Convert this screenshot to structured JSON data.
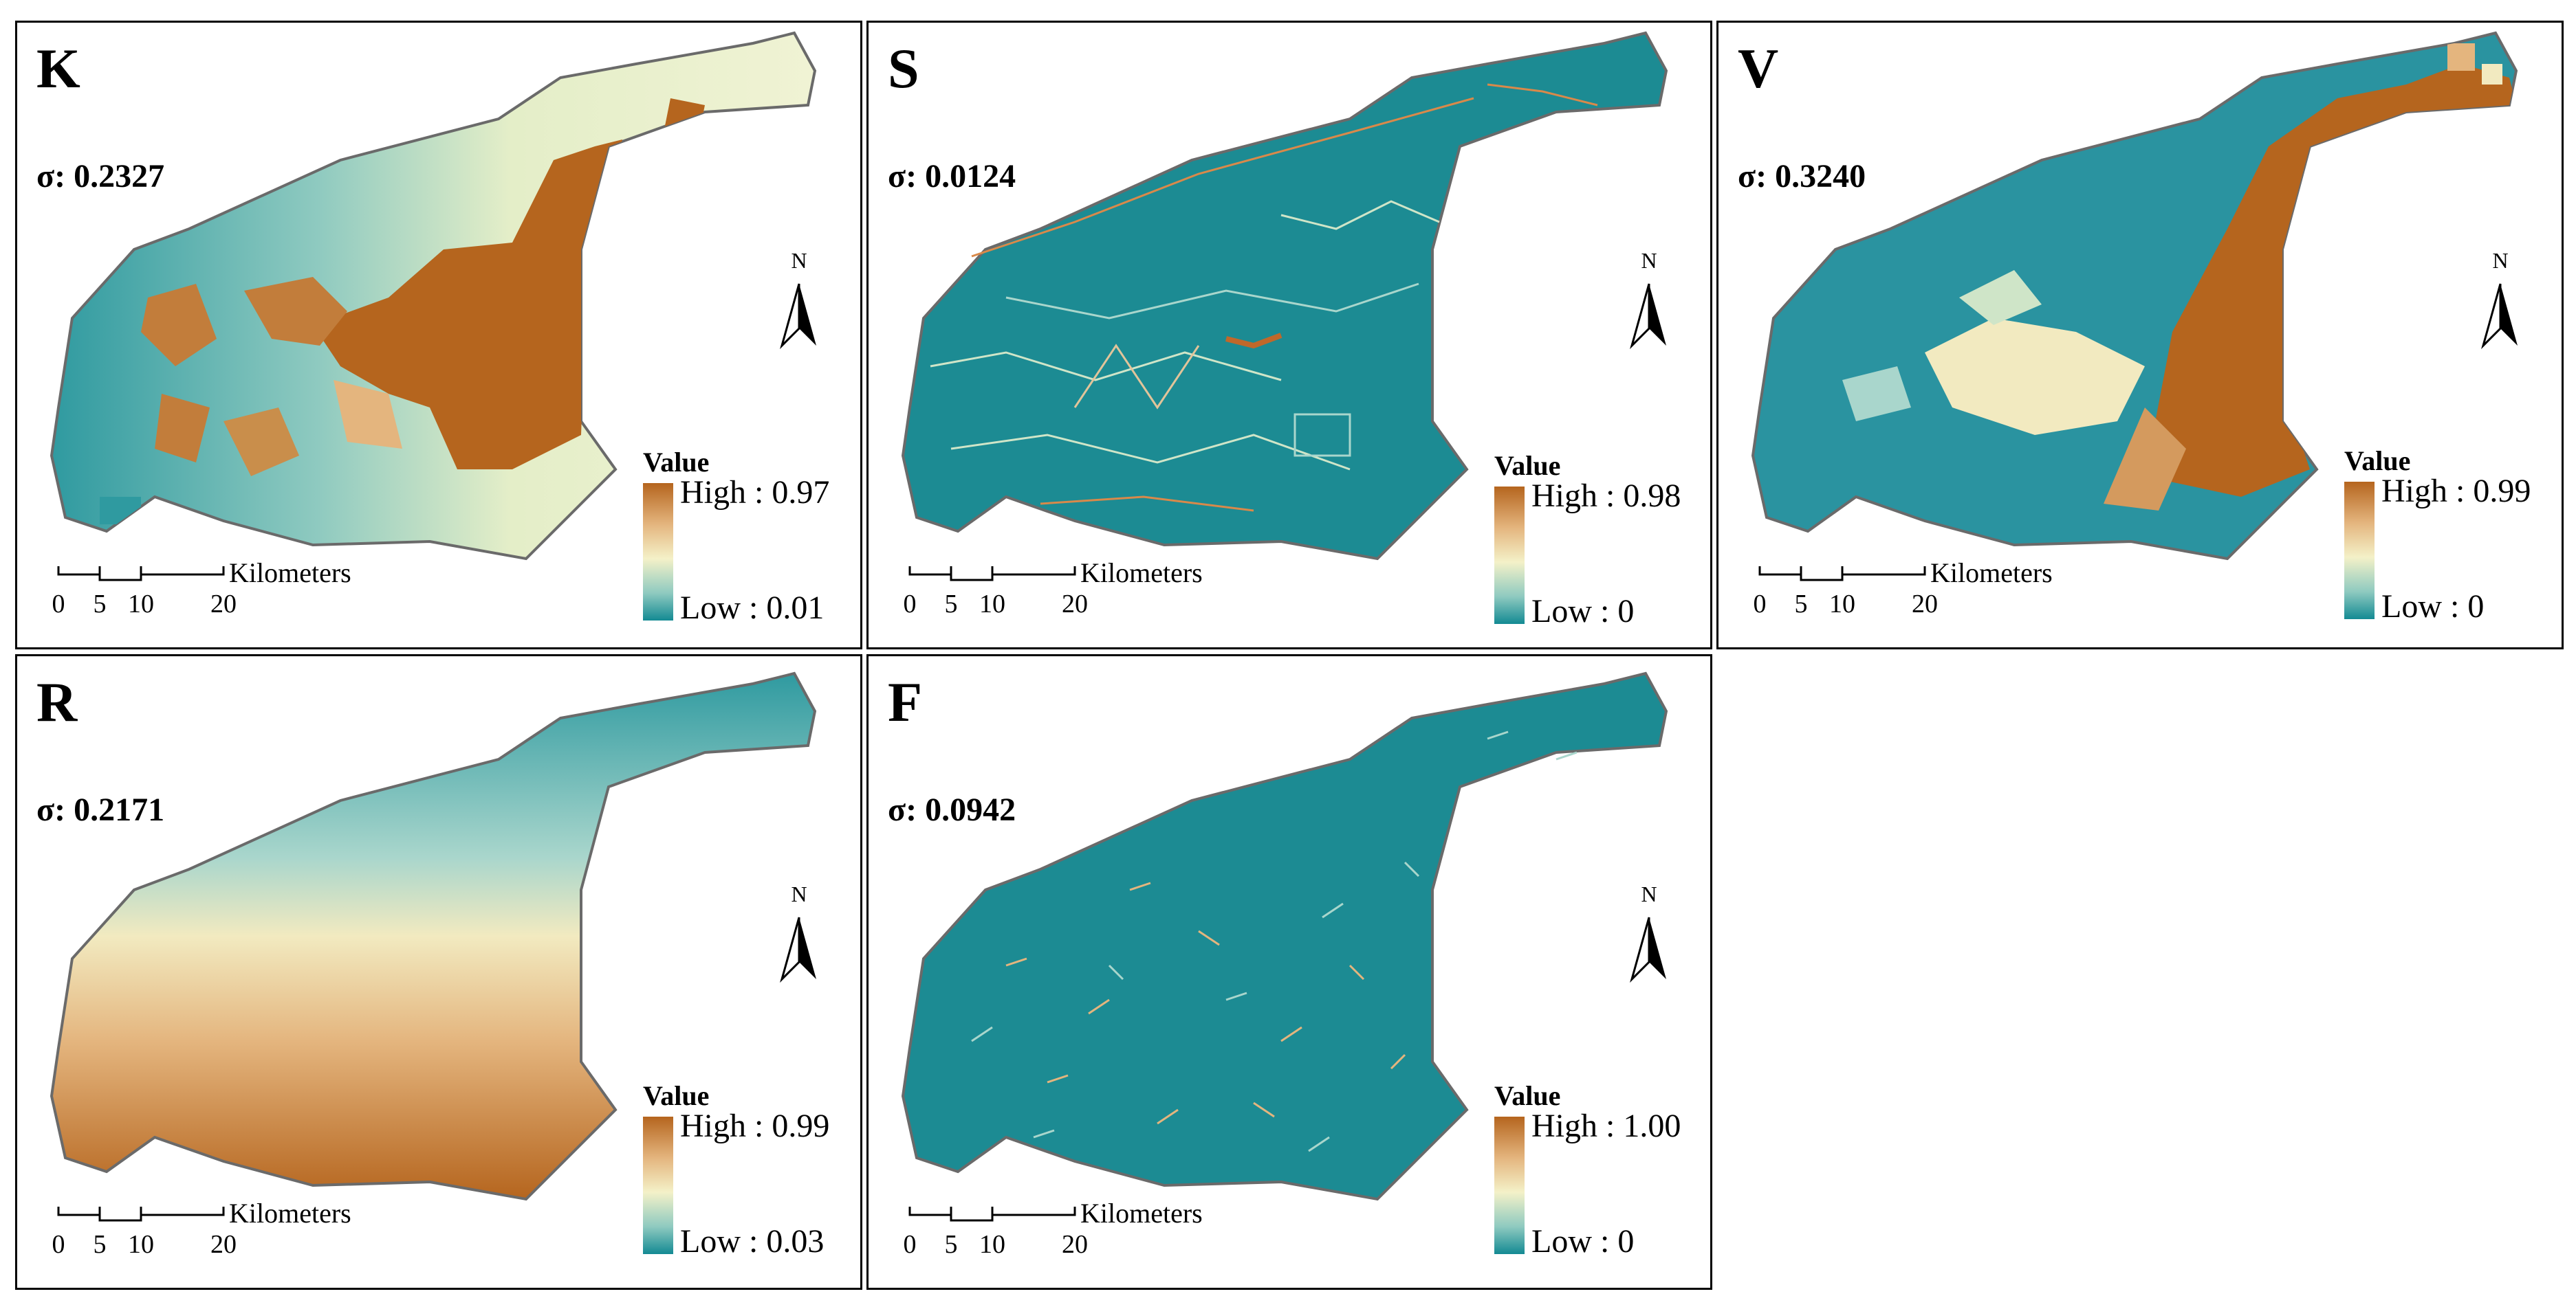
{
  "legend_title": "Value",
  "scale": {
    "unit": "Kilometers",
    "ticks": [
      "0",
      "5",
      "10",
      "20"
    ]
  },
  "north_label": "N",
  "ramp_colors": {
    "high": "#b5651e",
    "mid": "#f4f1c8",
    "low": "#138a93"
  },
  "panels": [
    {
      "label": "K",
      "sigma": "σ: 0.2327",
      "high": "High : 0.97",
      "low": "Low : 0.01",
      "pattern": "blocky-patches"
    },
    {
      "label": "S",
      "sigma": "σ: 0.0124",
      "high": "High : 0.98",
      "low": "Low : 0",
      "pattern": "fine-streaks"
    },
    {
      "label": "V",
      "sigma": "σ: 0.3240",
      "high": "High : 0.99",
      "low": "Low : 0",
      "pattern": "pixelated-mix"
    },
    {
      "label": "R",
      "sigma": "σ: 0.2171",
      "high": "High : 0.99",
      "low": "Low : 0.03",
      "pattern": "north-south-gradient"
    },
    {
      "label": "F",
      "sigma": "σ: 0.0942",
      "high": "High : 1.00",
      "low": "Low : 0",
      "pattern": "fine-speckle"
    }
  ]
}
